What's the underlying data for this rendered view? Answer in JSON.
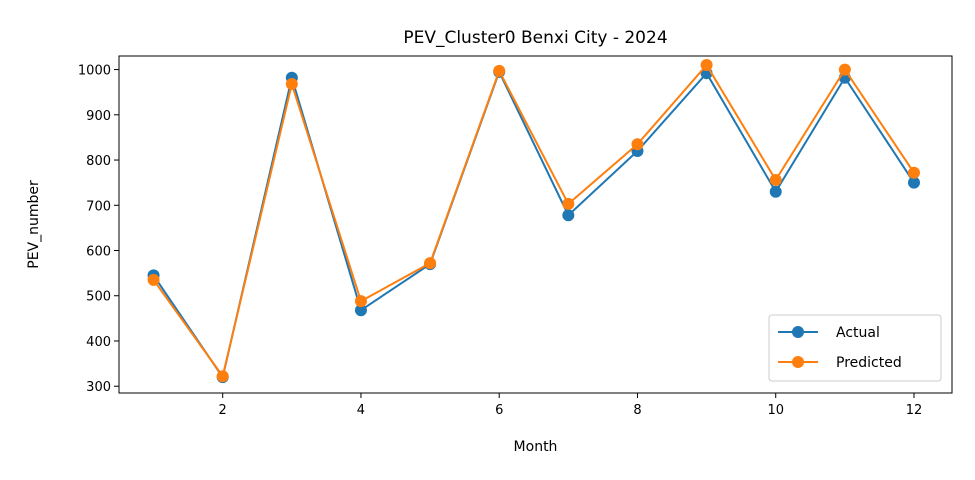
{
  "chart_data": {
    "type": "line",
    "title": "PEV_Cluster0 Benxi City - 2024",
    "xlabel": "Month",
    "ylabel": "PEV_number",
    "x": [
      1,
      2,
      3,
      4,
      5,
      6,
      7,
      8,
      9,
      10,
      11,
      12
    ],
    "xlim": [
      0.5,
      12.55
    ],
    "ylim": [
      285,
      1030
    ],
    "xticks": [
      2,
      4,
      6,
      8,
      10,
      12
    ],
    "yticks": [
      300,
      400,
      500,
      600,
      700,
      800,
      900,
      1000
    ],
    "grid": false,
    "legend_position": "bottom-right",
    "series": [
      {
        "name": "Actual",
        "color": "#1f77b4",
        "marker": "circle",
        "values": [
          545,
          320,
          982,
          468,
          570,
          995,
          678,
          820,
          992,
          730,
          982,
          750
        ]
      },
      {
        "name": "Predicted",
        "color": "#ff7f0e",
        "marker": "circle",
        "values": [
          535,
          322,
          968,
          488,
          572,
          997,
          703,
          835,
          1010,
          756,
          1000,
          772
        ]
      }
    ]
  }
}
